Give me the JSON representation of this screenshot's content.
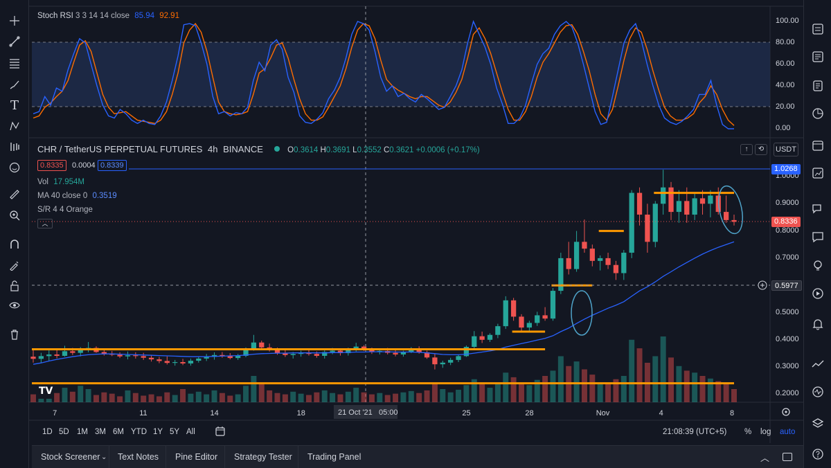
{
  "stoch": {
    "title": "Stoch RSI",
    "params": "3 3 14 14 close",
    "k_value": "85.94",
    "d_value": "92.91",
    "k_color": "#2962ff",
    "d_color": "#ff6d00",
    "scale": [
      "100.00",
      "80.00",
      "60.00",
      "40.00",
      "20.00",
      "0.00"
    ],
    "k_series": [
      14,
      16,
      30,
      22,
      38,
      35,
      55,
      70,
      84,
      80,
      60,
      40,
      22,
      12,
      10,
      18,
      14,
      8,
      5,
      8,
      5,
      4,
      12,
      25,
      45,
      68,
      97,
      98,
      96,
      80,
      60,
      30,
      14,
      16,
      12,
      15,
      14,
      20,
      45,
      62,
      54,
      78,
      83,
      74,
      48,
      34,
      12,
      6,
      5,
      9,
      15,
      28,
      36,
      48,
      66,
      88,
      100,
      98,
      92,
      72,
      48,
      35,
      40,
      30,
      33,
      28,
      25,
      32,
      28,
      23,
      18,
      20,
      30,
      40,
      55,
      80,
      100,
      88,
      76,
      60,
      38,
      23,
      5,
      5,
      10,
      22,
      42,
      60,
      70,
      75,
      88,
      96,
      100,
      95,
      80,
      60,
      38,
      16,
      4,
      6,
      30,
      55,
      80,
      92,
      98,
      82,
      60,
      40,
      22,
      10,
      6,
      4,
      7,
      12,
      18,
      32,
      32,
      45,
      22,
      4,
      0,
      0
    ],
    "d_series": [
      10,
      12,
      20,
      24,
      30,
      35,
      45,
      62,
      78,
      82,
      72,
      52,
      32,
      20,
      14,
      15,
      16,
      12,
      8,
      7,
      6,
      5,
      8,
      16,
      32,
      52,
      80,
      92,
      98,
      90,
      72,
      48,
      25,
      16,
      14,
      13,
      14,
      16,
      32,
      52,
      56,
      66,
      78,
      80,
      66,
      46,
      28,
      14,
      8,
      8,
      11,
      20,
      30,
      40,
      56,
      76,
      92,
      98,
      96,
      84,
      64,
      46,
      40,
      36,
      33,
      30,
      28,
      30,
      30,
      26,
      22,
      20,
      25,
      34,
      46,
      66,
      88,
      94,
      84,
      70,
      52,
      34,
      18,
      8,
      8,
      16,
      30,
      48,
      62,
      70,
      80,
      90,
      96,
      97,
      88,
      72,
      54,
      32,
      14,
      8,
      18,
      40,
      64,
      84,
      94,
      90,
      74,
      54,
      36,
      20,
      12,
      8,
      8,
      10,
      14,
      24,
      30,
      40,
      32,
      18,
      8,
      3
    ]
  },
  "main": {
    "symbol": "CHR / TetherUS PERPETUAL FUTURES",
    "interval": "4h",
    "exchange": "BINANCE",
    "open": "0.3614",
    "high": "0.3691",
    "low": "0.3552",
    "close": "0.3621",
    "change": "+0.0006 (+0.17%)",
    "sell_price": "0.8335",
    "spread": "0.0004",
    "buy_price": "0.8339",
    "currency_button": "USDT",
    "vol_label": "Vol",
    "vol_value": "17.954M",
    "ma_label": "MA 40 close 0",
    "ma_value": "0.3519",
    "sr_label": "S/R 4 4 Orange",
    "price_scale": [
      "1.0000",
      "0.9000",
      "0.8000",
      "0.7000",
      "0.6000",
      "0.5000",
      "0.4000",
      "0.3000",
      "0.2000"
    ],
    "tag_high": "1.0268",
    "tag_last": "0.8336",
    "tag_cross": "0.5977",
    "colors": {
      "up": "#26a69a",
      "down": "#ef5350",
      "ma": "#2962ff",
      "sr": "#ff9800"
    },
    "candles": [
      [
        0.338,
        0.362,
        0.316,
        0.33
      ],
      [
        0.33,
        0.352,
        0.316,
        0.34
      ],
      [
        0.34,
        0.361,
        0.322,
        0.346
      ],
      [
        0.346,
        0.362,
        0.332,
        0.341
      ],
      [
        0.341,
        0.378,
        0.338,
        0.358
      ],
      [
        0.358,
        0.37,
        0.344,
        0.352
      ],
      [
        0.352,
        0.373,
        0.339,
        0.364
      ],
      [
        0.364,
        0.392,
        0.354,
        0.37
      ],
      [
        0.37,
        0.376,
        0.352,
        0.355
      ],
      [
        0.355,
        0.366,
        0.342,
        0.349
      ],
      [
        0.349,
        0.359,
        0.34,
        0.345
      ],
      [
        0.345,
        0.354,
        0.333,
        0.339
      ],
      [
        0.339,
        0.357,
        0.328,
        0.343
      ],
      [
        0.343,
        0.354,
        0.331,
        0.34
      ],
      [
        0.34,
        0.352,
        0.326,
        0.334
      ],
      [
        0.334,
        0.343,
        0.32,
        0.328
      ],
      [
        0.328,
        0.337,
        0.314,
        0.322
      ],
      [
        0.322,
        0.339,
        0.309,
        0.315
      ],
      [
        0.315,
        0.326,
        0.305,
        0.318
      ],
      [
        0.318,
        0.33,
        0.307,
        0.313
      ],
      [
        0.313,
        0.331,
        0.305,
        0.323
      ],
      [
        0.323,
        0.339,
        0.316,
        0.331
      ],
      [
        0.331,
        0.348,
        0.322,
        0.337
      ],
      [
        0.337,
        0.354,
        0.327,
        0.344
      ],
      [
        0.344,
        0.355,
        0.334,
        0.34
      ],
      [
        0.34,
        0.351,
        0.328,
        0.333
      ],
      [
        0.333,
        0.348,
        0.326,
        0.341
      ],
      [
        0.341,
        0.372,
        0.336,
        0.367
      ],
      [
        0.367,
        0.418,
        0.36,
        0.39
      ],
      [
        0.39,
        0.397,
        0.365,
        0.372
      ],
      [
        0.372,
        0.386,
        0.357,
        0.362
      ],
      [
        0.362,
        0.371,
        0.345,
        0.351
      ],
      [
        0.351,
        0.362,
        0.337,
        0.344
      ],
      [
        0.344,
        0.355,
        0.331,
        0.348
      ],
      [
        0.348,
        0.36,
        0.338,
        0.353
      ],
      [
        0.353,
        0.366,
        0.342,
        0.348
      ],
      [
        0.348,
        0.357,
        0.334,
        0.341
      ],
      [
        0.341,
        0.361,
        0.331,
        0.355
      ],
      [
        0.355,
        0.37,
        0.347,
        0.36
      ],
      [
        0.36,
        0.366,
        0.342,
        0.351
      ],
      [
        0.351,
        0.371,
        0.342,
        0.364
      ],
      [
        0.364,
        0.389,
        0.357,
        0.375
      ],
      [
        0.375,
        0.38,
        0.359,
        0.364
      ],
      [
        0.364,
        0.371,
        0.348,
        0.355
      ],
      [
        0.355,
        0.365,
        0.346,
        0.359
      ],
      [
        0.359,
        0.37,
        0.346,
        0.352
      ],
      [
        0.352,
        0.362,
        0.339,
        0.346
      ],
      [
        0.346,
        0.36,
        0.338,
        0.354
      ],
      [
        0.354,
        0.373,
        0.351,
        0.366
      ],
      [
        0.366,
        0.376,
        0.349,
        0.354
      ],
      [
        0.354,
        0.36,
        0.33,
        0.335
      ],
      [
        0.335,
        0.35,
        0.291,
        0.31
      ],
      [
        0.31,
        0.323,
        0.297,
        0.316
      ],
      [
        0.316,
        0.334,
        0.307,
        0.326
      ],
      [
        0.326,
        0.345,
        0.318,
        0.34
      ],
      [
        0.34,
        0.379,
        0.337,
        0.374
      ],
      [
        0.374,
        0.432,
        0.366,
        0.413
      ],
      [
        0.413,
        0.43,
        0.388,
        0.4
      ],
      [
        0.4,
        0.424,
        0.392,
        0.418
      ],
      [
        0.418,
        0.459,
        0.406,
        0.45
      ],
      [
        0.45,
        0.56,
        0.44,
        0.545
      ],
      [
        0.545,
        0.554,
        0.47,
        0.485
      ],
      [
        0.485,
        0.494,
        0.43,
        0.445
      ],
      [
        0.445,
        0.47,
        0.431,
        0.462
      ],
      [
        0.462,
        0.503,
        0.451,
        0.49
      ],
      [
        0.49,
        0.52,
        0.47,
        0.478
      ],
      [
        0.478,
        0.59,
        0.47,
        0.58
      ],
      [
        0.58,
        0.72,
        0.568,
        0.7
      ],
      [
        0.7,
        0.76,
        0.64,
        0.66
      ],
      [
        0.66,
        0.8,
        0.65,
        0.76
      ],
      [
        0.76,
        0.842,
        0.72,
        0.735
      ],
      [
        0.735,
        0.75,
        0.67,
        0.69
      ],
      [
        0.69,
        0.71,
        0.655,
        0.7
      ],
      [
        0.7,
        0.72,
        0.66,
        0.675
      ],
      [
        0.675,
        0.69,
        0.62,
        0.645
      ],
      [
        0.645,
        0.73,
        0.62,
        0.72
      ],
      [
        0.72,
        0.95,
        0.7,
        0.94
      ],
      [
        0.94,
        0.96,
        0.82,
        0.86
      ],
      [
        0.86,
        0.9,
        0.72,
        0.76
      ],
      [
        0.76,
        0.91,
        0.74,
        0.9
      ],
      [
        0.9,
        1.025,
        0.86,
        0.96
      ],
      [
        0.96,
        0.98,
        0.84,
        0.87
      ],
      [
        0.87,
        0.95,
        0.83,
        0.91
      ],
      [
        0.91,
        0.96,
        0.83,
        0.86
      ],
      [
        0.86,
        0.94,
        0.84,
        0.92
      ],
      [
        0.92,
        0.95,
        0.86,
        0.9
      ],
      [
        0.9,
        0.95,
        0.85,
        0.93
      ],
      [
        0.93,
        0.96,
        0.86,
        0.87
      ],
      [
        0.87,
        0.93,
        0.83,
        0.84
      ],
      [
        0.84,
        0.86,
        0.82,
        0.8336
      ]
    ],
    "ma_series": [
      0.31,
      0.315,
      0.322,
      0.328,
      0.333,
      0.338,
      0.342,
      0.345,
      0.347,
      0.348,
      0.348,
      0.347,
      0.346,
      0.345,
      0.344,
      0.343,
      0.342,
      0.341,
      0.34,
      0.339,
      0.338,
      0.338,
      0.338,
      0.339,
      0.34,
      0.341,
      0.342,
      0.344,
      0.347,
      0.349,
      0.35,
      0.351,
      0.351,
      0.352,
      0.352,
      0.352,
      0.352,
      0.352,
      0.353,
      0.353,
      0.354,
      0.355,
      0.355,
      0.356,
      0.356,
      0.356,
      0.355,
      0.355,
      0.355,
      0.354,
      0.352,
      0.349,
      0.346,
      0.345,
      0.345,
      0.347,
      0.351,
      0.355,
      0.359,
      0.364,
      0.373,
      0.38,
      0.386,
      0.392,
      0.399,
      0.405,
      0.415,
      0.43,
      0.443,
      0.46,
      0.476,
      0.49,
      0.503,
      0.516,
      0.527,
      0.54,
      0.56,
      0.58,
      0.595,
      0.613,
      0.633,
      0.65,
      0.668,
      0.684,
      0.7,
      0.715,
      0.728,
      0.74,
      0.75,
      0.76
    ],
    "volumes": [
      12,
      18,
      9,
      14,
      22,
      16,
      25,
      20,
      11,
      15,
      13,
      9,
      18,
      14,
      10,
      12,
      9,
      15,
      11,
      20,
      13,
      16,
      12,
      18,
      14,
      10,
      12,
      25,
      40,
      30,
      18,
      14,
      12,
      16,
      13,
      11,
      15,
      18,
      14,
      12,
      16,
      22,
      15,
      12,
      14,
      11,
      13,
      15,
      17,
      14,
      18,
      28,
      20,
      15,
      19,
      26,
      35,
      30,
      22,
      28,
      45,
      38,
      30,
      26,
      34,
      40,
      48,
      70,
      55,
      62,
      50,
      42,
      30,
      28,
      35,
      40,
      95,
      82,
      60,
      70,
      100,
      68,
      55,
      48,
      45,
      40,
      36,
      32,
      30,
      20
    ]
  },
  "time_axis": [
    {
      "label": "7",
      "i": 3
    },
    {
      "label": "11",
      "i": 14
    },
    {
      "label": "14",
      "i": 23
    },
    {
      "label": "18",
      "i": 34
    },
    {
      "label": "25",
      "i": 55
    },
    {
      "label": "28",
      "i": 63
    },
    {
      "label": "Nov",
      "i": 72
    },
    {
      "label": "4",
      "i": 80
    },
    {
      "label": "8",
      "i": 89
    }
  ],
  "crosshair_label": "21 Oct '21   05:00",
  "periods": [
    "1D",
    "5D",
    "1M",
    "3M",
    "6M",
    "YTD",
    "1Y",
    "5Y",
    "All"
  ],
  "clock": "21:08:39 (UTC+5)",
  "scale_opts": [
    "%",
    "log",
    "auto"
  ],
  "bottom_tabs": [
    "Stock Screener",
    "Text Notes",
    "Pine Editor",
    "Strategy Tester",
    "Trading Panel"
  ],
  "logo_text": "TV"
}
